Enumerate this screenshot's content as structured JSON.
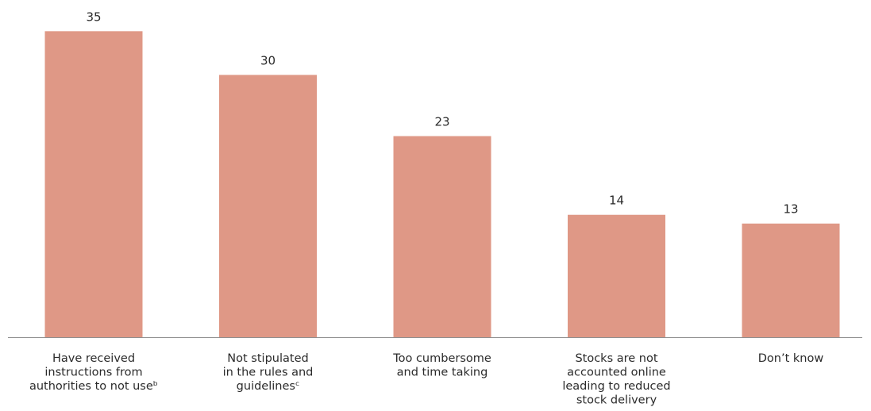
{
  "colors": {
    "bar": "#df9886",
    "axis": "#8f8f8f",
    "text": "#2b2b2b"
  },
  "chart_data": {
    "type": "bar",
    "title": "",
    "xlabel": "",
    "ylabel": "",
    "ylim": [
      0,
      36.3
    ],
    "grid": false,
    "legend": "none",
    "categories": [
      [
        "Have received",
        "instructions from",
        "authorities to not useᵇ"
      ],
      [
        "Not stipulated",
        "in the rules and",
        "guidelinesᶜ"
      ],
      [
        "Too cumbersome",
        "and time taking"
      ],
      [
        "Stocks are not",
        "accounted online",
        "leading to reduced",
        "stock delivery"
      ],
      [
        "Don’t know"
      ]
    ],
    "values": [
      35,
      30,
      23,
      14,
      13
    ],
    "data_labels": [
      "35",
      "30",
      "23",
      "14",
      "13"
    ]
  }
}
